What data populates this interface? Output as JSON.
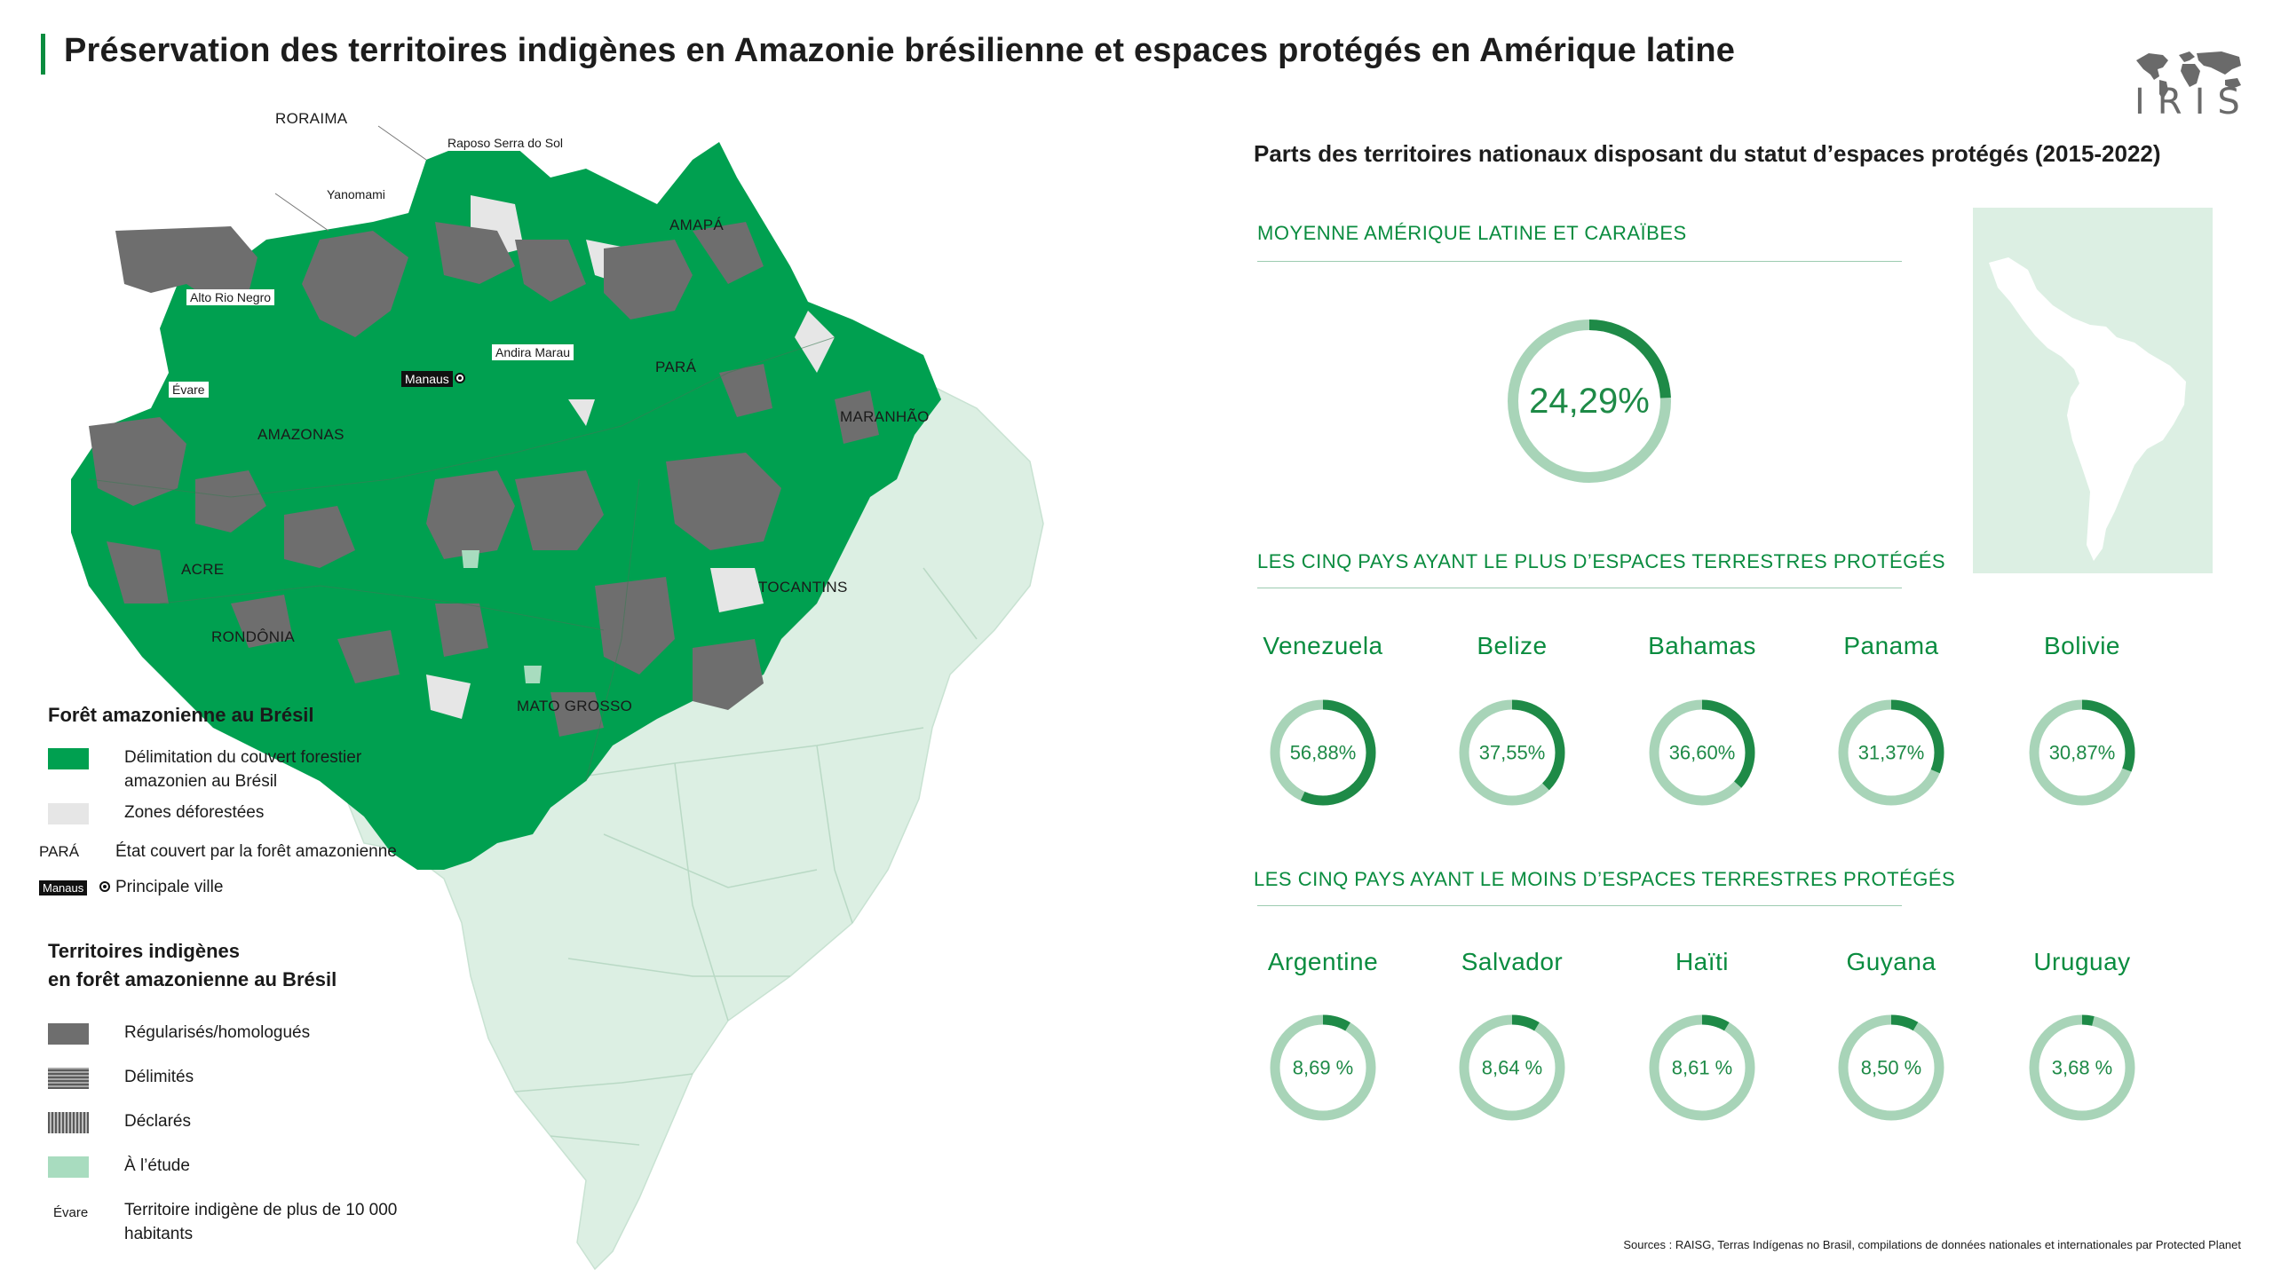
{
  "title": "Préservation des territoires indigènes en Amazonie brésilienne et espaces protégés en Amérique latine",
  "logo": {
    "text": "IRIS",
    "icon": "world-map-icon"
  },
  "map": {
    "states": [
      {
        "key": "roraima",
        "label": "RORAIMA"
      },
      {
        "key": "amapa",
        "label": "AMAPÁ"
      },
      {
        "key": "para",
        "label": "PARÁ"
      },
      {
        "key": "amazonas",
        "label": "AMAZONAS"
      },
      {
        "key": "maranhao",
        "label": "MARANHÃO"
      },
      {
        "key": "acre",
        "label": "ACRE"
      },
      {
        "key": "tocantins",
        "label": "TOCANTINS"
      },
      {
        "key": "rondonia",
        "label": "RONDÔNIA"
      },
      {
        "key": "mato_grosso",
        "label": "MATO GROSSO"
      }
    ],
    "territories": [
      "Raposo  Serra do Sol",
      "Yanomami",
      "Alto Rio Negro",
      "Andira Marau",
      "Évare"
    ],
    "city": "Manaus",
    "colors": {
      "forest": "#00a050",
      "territory": "#6e6e6e",
      "brazil": "#dcefe3",
      "deforested": "#e6e6e6"
    }
  },
  "legend": {
    "forest": {
      "title": "Forêt amazonienne au Brésil",
      "items": [
        {
          "key": "",
          "label": "Délimitation du couvert forestier amazonien au Brésil",
          "swatch": "forest"
        },
        {
          "key": "",
          "label": "Zones déforestées",
          "swatch": "deforested"
        },
        {
          "key": "PARÁ",
          "label": "État couvert par la forêt amazonienne"
        },
        {
          "key": "Manaus",
          "label": "Principale ville"
        }
      ]
    },
    "indigenous": {
      "title_line1": "Territoires indigènes",
      "title_line2": "en forêt amazonienne au Brésil",
      "items": [
        {
          "label": "Régularisés/homologués",
          "swatch": "regularises"
        },
        {
          "label": "Délimités",
          "swatch": "delimites"
        },
        {
          "label": "Déclarés",
          "swatch": "declares"
        },
        {
          "label": "À l’étude",
          "swatch": "a-l-etude"
        },
        {
          "key": "Évare",
          "label": "Territoire indigène de plus de 10 000 habitants"
        }
      ]
    }
  },
  "chart_data": {
    "type": "donut",
    "title": "Parts des territoires nationaux disposant du statut d’espaces protégés (2015-2022)",
    "colors": {
      "filled": "#1e8a47",
      "remaining": "#a8d4b8"
    },
    "average": {
      "section": "MOYENNE AMÉRIQUE LATINE ET CARAÏBES",
      "value": 24.29,
      "label": "24,29%"
    },
    "top": {
      "section": "LES CINQ PAYS AYANT LE PLUS D’ESPACES TERRESTRES PROTÉGÉS",
      "items": [
        {
          "country": "Venezuela",
          "value": 56.88,
          "label": "56,88%"
        },
        {
          "country": "Belize",
          "value": 37.55,
          "label": "37,55%"
        },
        {
          "country": "Bahamas",
          "value": 36.6,
          "label": "36,60%"
        },
        {
          "country": "Panama",
          "value": 31.37,
          "label": "31,37%"
        },
        {
          "country": "Bolivie",
          "value": 30.87,
          "label": "30,87%"
        }
      ]
    },
    "bottom": {
      "section": "LES CINQ PAYS AYANT LE MOINS D’ESPACES TERRESTRES PROTÉGÉS",
      "items": [
        {
          "country": "Argentine",
          "value": 8.69,
          "label": "8,69 %"
        },
        {
          "country": "Salvador",
          "value": 8.64,
          "label": "8,64 %"
        },
        {
          "country": "Haïti",
          "value": 8.61,
          "label": "8,61 %"
        },
        {
          "country": "Guyana",
          "value": 8.5,
          "label": "8,50 %"
        },
        {
          "country": "Uruguay",
          "value": 3.68,
          "label": "3,68 %"
        }
      ]
    }
  },
  "sources": "Sources : RAISG, Terras Indígenas no Brasil, compilations de données nationales et internationales par Protected Planet"
}
